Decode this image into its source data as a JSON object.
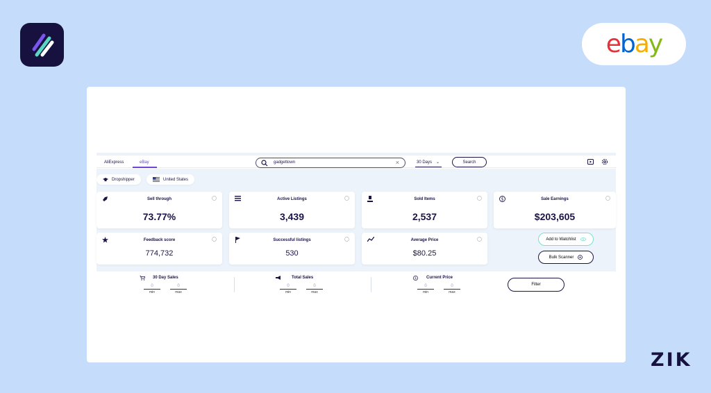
{
  "brand": {
    "zik": "ZIK",
    "ebay_letters": [
      "e",
      "b",
      "a",
      "y"
    ]
  },
  "colors": {
    "accent": "#6b46d8",
    "watchlist_border": "#7be0c9",
    "dark": "#1a1446"
  },
  "tabs": [
    {
      "label": "AliExpress",
      "active": false
    },
    {
      "label": "eBay",
      "active": true
    }
  ],
  "search": {
    "value": "gadgettown",
    "clear_icon": "close-icon"
  },
  "period": {
    "selected": "30 Days"
  },
  "search_button": "Search",
  "chips": [
    {
      "label": "Dropshipper",
      "icon": "hat-icon"
    },
    {
      "label": "United States",
      "icon": "us-flag-icon"
    }
  ],
  "stats": [
    {
      "label": "Sell through",
      "value": "73.77%",
      "icon": "rocket-icon"
    },
    {
      "label": "Active Listings",
      "value": "3,439",
      "icon": "list-icon"
    },
    {
      "label": "Sold Items",
      "value": "2,537",
      "icon": "gavel-icon"
    },
    {
      "label": "Sale Earnings",
      "value": "$203,605",
      "icon": "dollar-icon"
    },
    {
      "label": "Feedback score",
      "value": "774,732",
      "icon": "star-icon"
    },
    {
      "label": "Successful listings",
      "value": "530",
      "icon": "flag-icon"
    },
    {
      "label": "Average Price",
      "value": "$80.25",
      "icon": "trend-icon"
    }
  ],
  "actions": {
    "watchlist": "Add to Watchlist",
    "bulk": "Bulk Scanner"
  },
  "filters": [
    {
      "title": "30 Day Sales",
      "min": "0",
      "max": "0",
      "min_label": "min",
      "max_label": "max"
    },
    {
      "title": "Total Sales",
      "min": "0",
      "max": "0",
      "min_label": "min",
      "max_label": "max"
    },
    {
      "title": "Current Price",
      "min": "0",
      "max": "0",
      "min_label": "min",
      "max_label": "max"
    }
  ],
  "filter_button": "Filter"
}
